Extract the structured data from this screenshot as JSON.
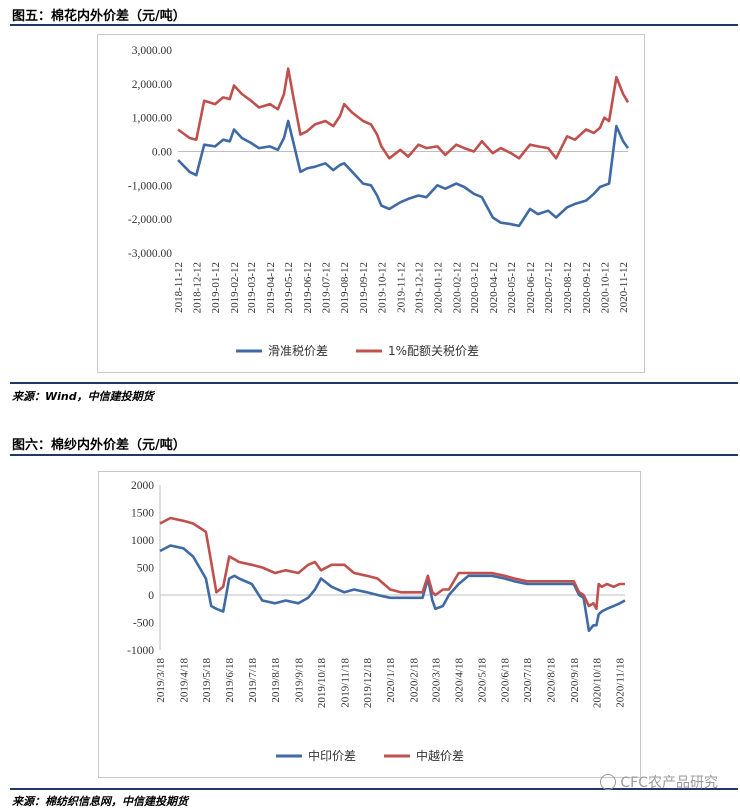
{
  "figures": [
    {
      "title": "图五：棉花内外价差（元/吨）",
      "source": "来源：Wind，中信建投期货"
    },
    {
      "title": "图六：棉纱内外价差（元/吨）",
      "source": "来源：棉纺织信息网，中信建投期货"
    }
  ],
  "watermark": "CFC农产品研究",
  "chart_data": [
    {
      "type": "line",
      "title": "图五：棉花内外价差（元/吨）",
      "xlabel": "",
      "ylabel": "",
      "ylim": [
        -3000,
        3000
      ],
      "yticks": [
        "3,000.00",
        "2,000.00",
        "1,000.00",
        "0.00",
        "-1,000.00",
        "-2,000.00",
        "-3,000.00"
      ],
      "x_tick_labels": [
        "2018-11-12",
        "2018-12-12",
        "2019-01-12",
        "2019-02-12",
        "2019-03-12",
        "2019-04-12",
        "2019-05-12",
        "2019-06-12",
        "2019-07-12",
        "2019-08-12",
        "2019-09-12",
        "2019-10-12",
        "2019-11-12",
        "2019-12-12",
        "2020-01-12",
        "2020-02-12",
        "2020-03-12",
        "2020-04-12",
        "2020-05-12",
        "2020-06-12",
        "2020-07-12",
        "2020-08-12",
        "2020-09-12",
        "2020-10-12",
        "2020-11-12"
      ],
      "grid": false,
      "legend_position": "bottom",
      "x": [
        "2018-11-12",
        "2018-12-01",
        "2018-12-12",
        "2018-12-25",
        "2019-01-12",
        "2019-01-25",
        "2019-02-05",
        "2019-02-12",
        "2019-02-25",
        "2019-03-12",
        "2019-03-25",
        "2019-04-12",
        "2019-04-25",
        "2019-05-05",
        "2019-05-12",
        "2019-05-20",
        "2019-06-01",
        "2019-06-12",
        "2019-06-25",
        "2019-07-12",
        "2019-07-25",
        "2019-08-05",
        "2019-08-12",
        "2019-08-25",
        "2019-09-12",
        "2019-09-25",
        "2019-10-05",
        "2019-10-12",
        "2019-10-25",
        "2019-11-12",
        "2019-11-25",
        "2019-12-12",
        "2019-12-25",
        "2020-01-12",
        "2020-01-25",
        "2020-02-12",
        "2020-02-25",
        "2020-03-12",
        "2020-03-25",
        "2020-04-12",
        "2020-04-25",
        "2020-05-12",
        "2020-05-25",
        "2020-06-12",
        "2020-06-25",
        "2020-07-12",
        "2020-07-25",
        "2020-08-12",
        "2020-08-25",
        "2020-09-12",
        "2020-09-25",
        "2020-10-05",
        "2020-10-12",
        "2020-10-20",
        "2020-11-01",
        "2020-11-12",
        "2020-11-20"
      ],
      "series": [
        {
          "name": "滑准税价差",
          "color": "#3f6aa6",
          "values": [
            -250,
            -600,
            -700,
            200,
            150,
            350,
            300,
            650,
            400,
            250,
            100,
            150,
            50,
            400,
            900,
            300,
            -600,
            -500,
            -450,
            -350,
            -550,
            -400,
            -350,
            -600,
            -950,
            -1000,
            -1300,
            -1600,
            -1700,
            -1500,
            -1400,
            -1300,
            -1350,
            -1000,
            -1100,
            -950,
            -1050,
            -1250,
            -1350,
            -1950,
            -2100,
            -2150,
            -2200,
            -1700,
            -1850,
            -1750,
            -1950,
            -1650,
            -1550,
            -1450,
            -1250,
            -1050,
            -1000,
            -950,
            750,
            300,
            100
          ]
        },
        {
          "name": "1%配额关税价差",
          "color": "#c0504d",
          "values": [
            650,
            400,
            350,
            1500,
            1400,
            1600,
            1550,
            1950,
            1700,
            1500,
            1300,
            1400,
            1250,
            1700,
            2450,
            1650,
            500,
            600,
            800,
            900,
            750,
            1050,
            1400,
            1150,
            900,
            800,
            500,
            150,
            -200,
            50,
            -150,
            200,
            100,
            150,
            -100,
            200,
            100,
            0,
            300,
            -50,
            100,
            -50,
            -200,
            200,
            150,
            100,
            -200,
            450,
            350,
            650,
            550,
            700,
            1000,
            900,
            2200,
            1700,
            1450
          ]
        }
      ]
    },
    {
      "type": "line",
      "title": "图六：棉纱内外价差（元/吨）",
      "xlabel": "",
      "ylabel": "",
      "ylim": [
        -1000,
        2000
      ],
      "yticks": [
        "2000",
        "1500",
        "1000",
        "500",
        "0",
        "-500",
        "-1000"
      ],
      "x_tick_labels": [
        "2019/3/18",
        "2019/4/18",
        "2019/5/18",
        "2019/6/18",
        "2019/7/18",
        "2019/8/18",
        "2019/9/18",
        "2019/10/18",
        "2019/11/18",
        "2019/12/18",
        "2020/1/18",
        "2020/2/18",
        "2020/3/18",
        "2020/4/18",
        "2020/5/18",
        "2020/6/18",
        "2020/7/18",
        "2020/8/18",
        "2020/9/18",
        "2020/10/18",
        "2020/11/18"
      ],
      "grid": false,
      "legend_position": "bottom",
      "x": [
        "2019-03-18",
        "2019-04-01",
        "2019-04-18",
        "2019-05-01",
        "2019-05-18",
        "2019-05-25",
        "2019-06-01",
        "2019-06-10",
        "2019-06-18",
        "2019-06-25",
        "2019-07-01",
        "2019-07-18",
        "2019-08-01",
        "2019-08-18",
        "2019-09-01",
        "2019-09-18",
        "2019-10-01",
        "2019-10-10",
        "2019-10-18",
        "2019-11-01",
        "2019-11-18",
        "2019-12-01",
        "2019-12-18",
        "2020-01-01",
        "2020-01-18",
        "2020-02-01",
        "2020-02-18",
        "2020-03-01",
        "2020-03-08",
        "2020-03-14",
        "2020-03-18",
        "2020-03-28",
        "2020-04-05",
        "2020-04-18",
        "2020-05-01",
        "2020-05-18",
        "2020-06-01",
        "2020-06-18",
        "2020-07-01",
        "2020-07-18",
        "2020-08-01",
        "2020-08-18",
        "2020-09-01",
        "2020-09-18",
        "2020-09-25",
        "2020-10-01",
        "2020-10-08",
        "2020-10-14",
        "2020-10-18",
        "2020-10-21",
        "2020-10-25",
        "2020-11-01",
        "2020-11-10",
        "2020-11-18",
        "2020-11-25"
      ],
      "series": [
        {
          "name": "中印价差",
          "color": "#3f6aa6",
          "values": [
            800,
            900,
            850,
            700,
            300,
            -200,
            -250,
            -300,
            300,
            350,
            300,
            200,
            -100,
            -150,
            -100,
            -150,
            -50,
            100,
            300,
            150,
            50,
            100,
            50,
            0,
            -50,
            -50,
            -50,
            -50,
            300,
            -100,
            -250,
            -200,
            0,
            200,
            350,
            350,
            350,
            300,
            250,
            200,
            200,
            200,
            200,
            200,
            0,
            -50,
            -650,
            -550,
            -550,
            -350,
            -300,
            -250,
            -200,
            -150,
            -100
          ],
          "note": "clamped shape approximated"
        },
        {
          "name": "中越价差",
          "color": "#c0504d",
          "values": [
            1300,
            1400,
            1350,
            1300,
            1150,
            600,
            50,
            150,
            700,
            650,
            600,
            550,
            500,
            400,
            450,
            400,
            550,
            600,
            450,
            550,
            550,
            400,
            350,
            300,
            100,
            50,
            50,
            50,
            350,
            50,
            0,
            100,
            100,
            400,
            400,
            400,
            400,
            350,
            300,
            250,
            250,
            250,
            250,
            250,
            50,
            0,
            -200,
            -150,
            -250,
            200,
            150,
            200,
            150,
            200,
            200
          ]
        }
      ]
    }
  ]
}
